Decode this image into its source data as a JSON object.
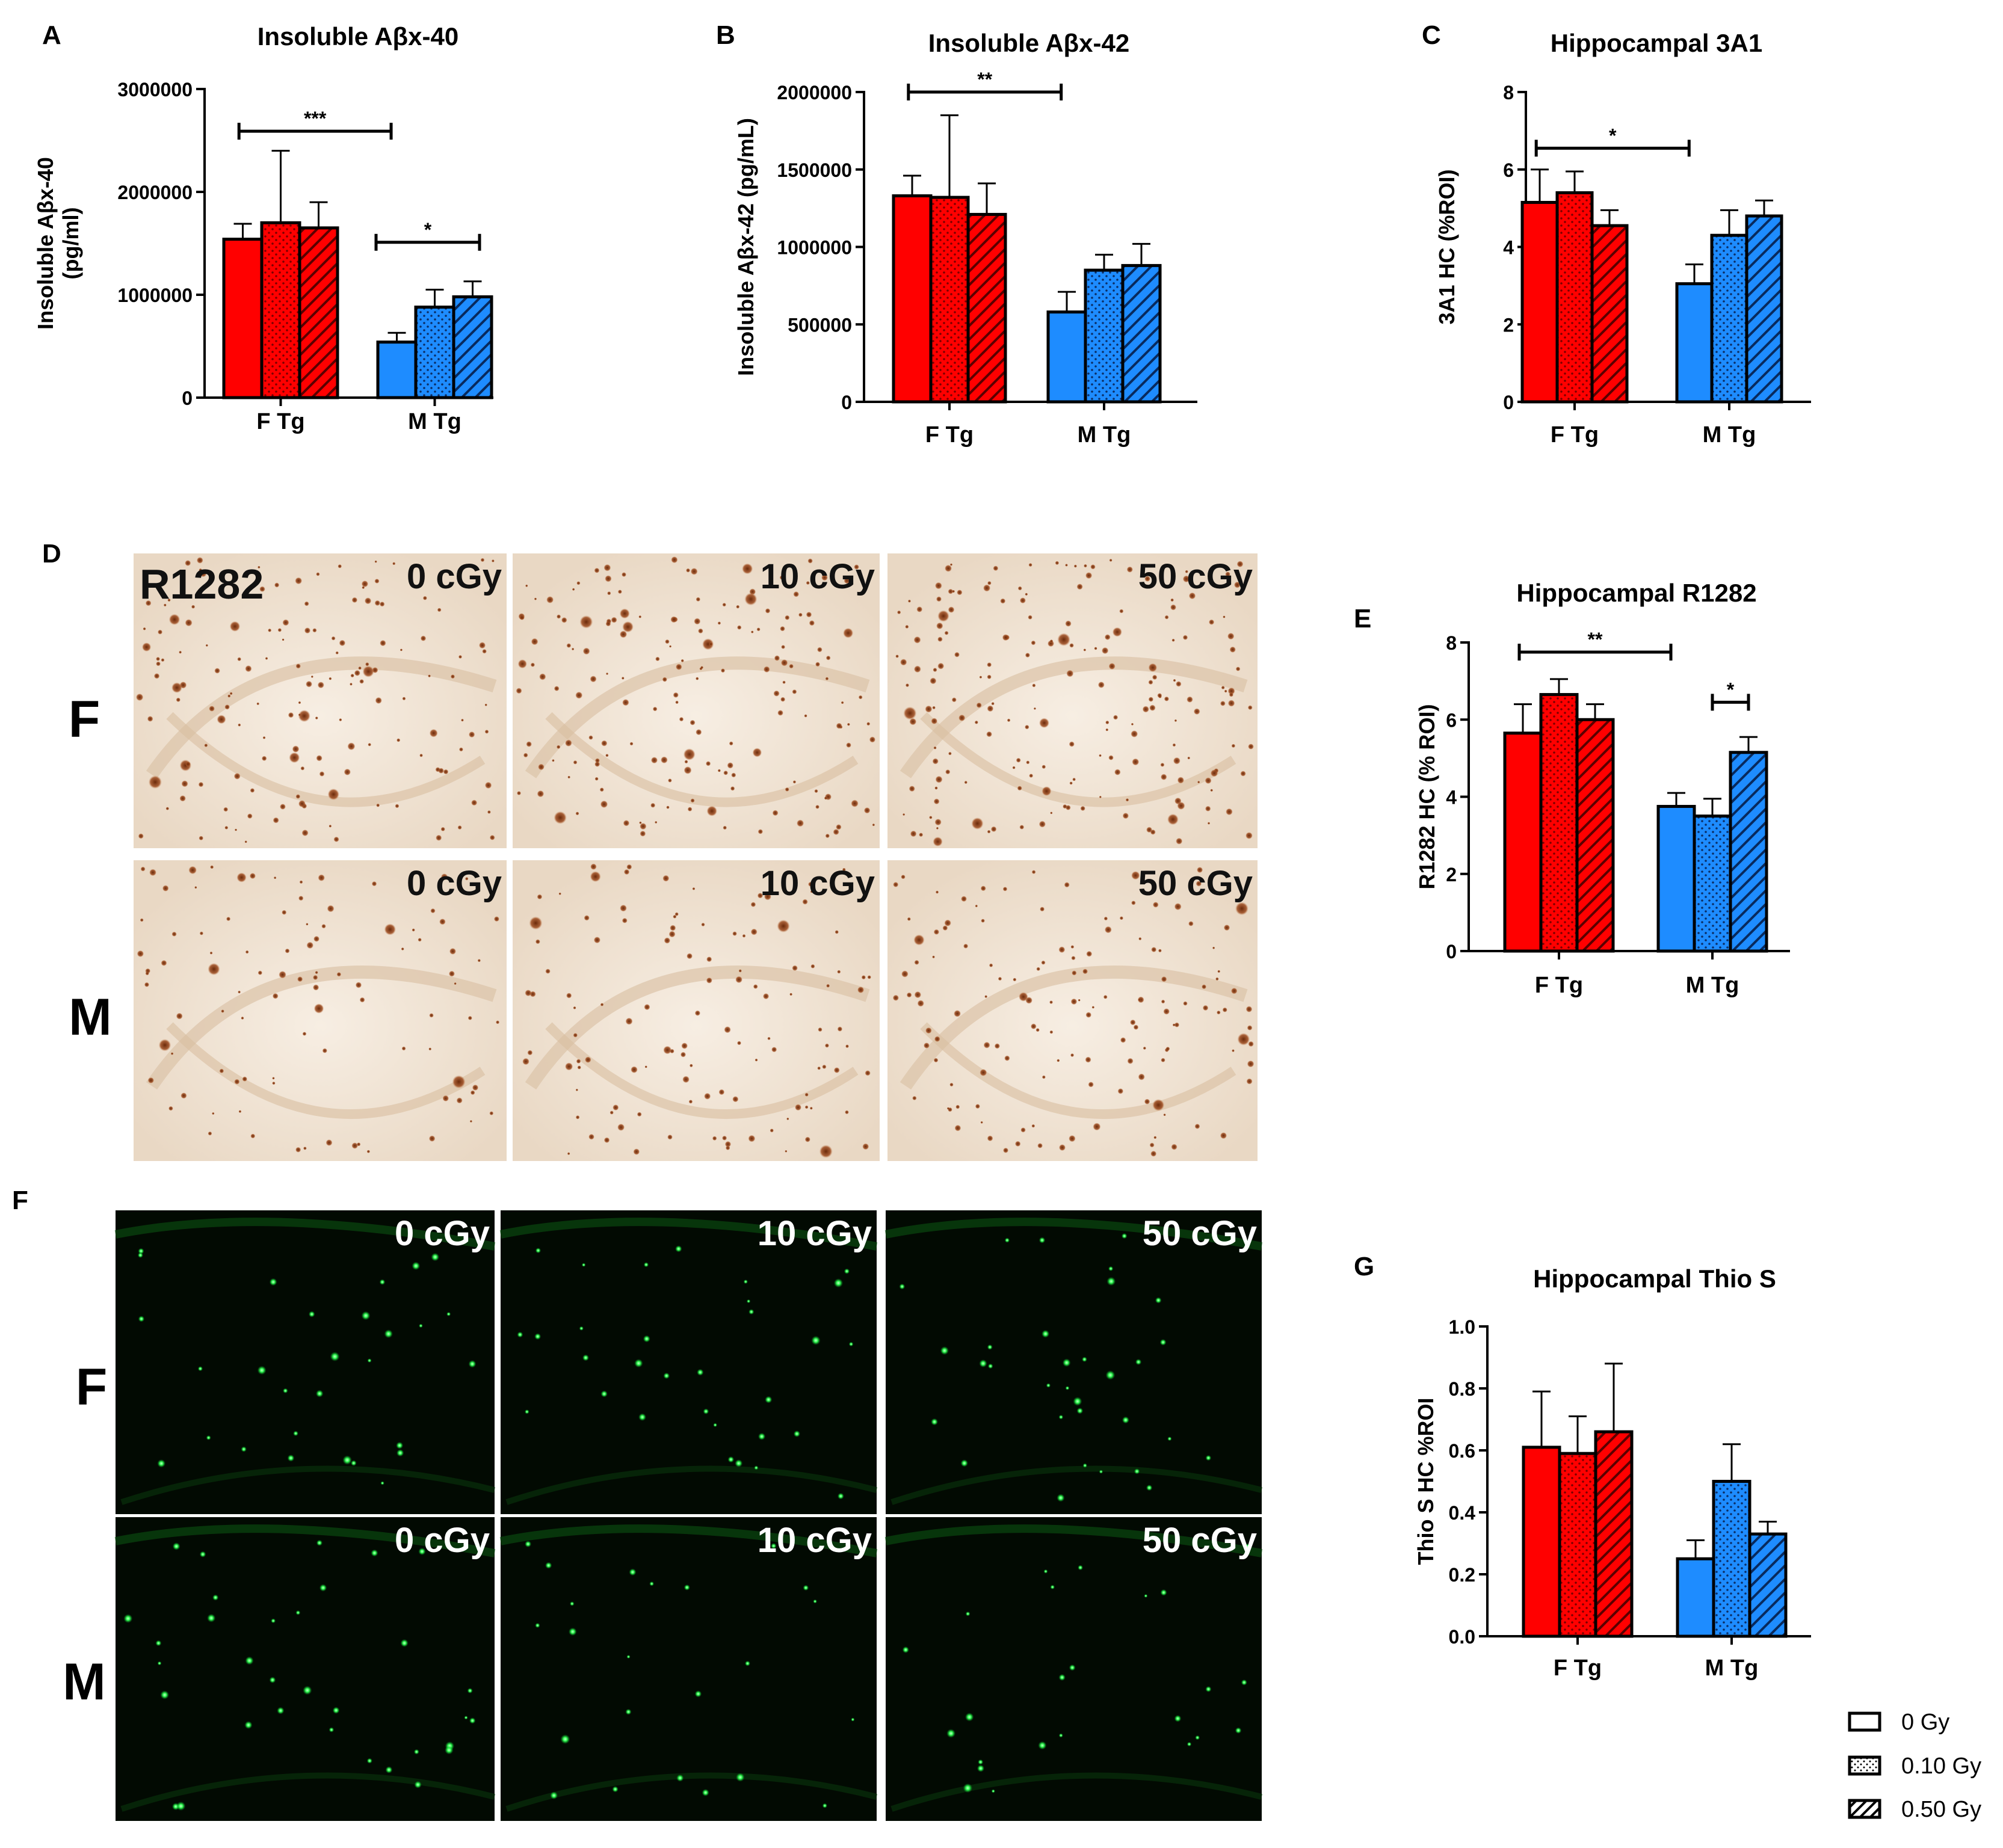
{
  "panels": {
    "A": {
      "letter": "A"
    },
    "B": {
      "letter": "B"
    },
    "C": {
      "letter": "C"
    },
    "D": {
      "letter": "D"
    },
    "E": {
      "letter": "E"
    },
    "F": {
      "letter": "F"
    },
    "G": {
      "letter": "G"
    }
  },
  "colors": {
    "female": "#ff0000",
    "male": "#1e8cff",
    "axis": "#000000",
    "mag_bg": "#020a02",
    "ihc_bg": "#efe2d2"
  },
  "micrographs": {
    "d": {
      "stain_label": "R1282",
      "row_labels": [
        "F",
        "M"
      ],
      "dose_labels": [
        "0 cGy",
        "10 cGy",
        "50 cGy"
      ]
    },
    "f": {
      "row_labels": [
        "F",
        "M"
      ],
      "dose_labels": [
        "0 cGy",
        "10 cGy",
        "50 cGy"
      ]
    }
  },
  "legend": {
    "items": [
      {
        "label": "0 Gy",
        "pattern": "solid"
      },
      {
        "label": "0.10 Gy",
        "pattern": "dots"
      },
      {
        "label": "0.50 Gy",
        "pattern": "hatch"
      }
    ]
  },
  "chart_data": [
    {
      "panel": "A",
      "type": "bar",
      "title": "Insoluble Aβx-40",
      "ylabel": "Insoluble Aβx-40\n(pg/ml)",
      "categories": [
        "F Tg",
        "M Tg"
      ],
      "ylim": [
        0,
        3000000
      ],
      "yticks": [
        0,
        1000000,
        2000000,
        3000000
      ],
      "yticklabels": [
        "0",
        "1000000",
        "2000000",
        "3000000"
      ],
      "series": [
        {
          "pattern": "solid",
          "values": [
            1540000,
            540000
          ],
          "errors": [
            150000,
            90000
          ]
        },
        {
          "pattern": "dots",
          "values": [
            1700000,
            880000
          ],
          "errors": [
            700000,
            170000
          ]
        },
        {
          "pattern": "hatch",
          "values": [
            1650000,
            980000
          ],
          "errors": [
            250000,
            150000
          ]
        }
      ],
      "significance": [
        {
          "label": "***",
          "category": 0,
          "from": 0,
          "to": 3,
          "at": 2590000
        },
        {
          "label": "*",
          "category": 1,
          "from": 0,
          "to": 2,
          "at": 1510000
        }
      ]
    },
    {
      "panel": "B",
      "type": "bar",
      "title": "Insoluble Aβx-42",
      "ylabel": "Insoluble Aβx-42 (pg/mL)",
      "categories": [
        "F Tg",
        "M Tg"
      ],
      "ylim": [
        0,
        2000000
      ],
      "yticks": [
        0,
        500000,
        1000000,
        1500000,
        2000000
      ],
      "yticklabels": [
        "0",
        "500000",
        "1000000",
        "1500000",
        "2000000"
      ],
      "series": [
        {
          "pattern": "solid",
          "values": [
            1330000,
            580000
          ],
          "errors": [
            130000,
            130000
          ]
        },
        {
          "pattern": "dots",
          "values": [
            1320000,
            850000
          ],
          "errors": [
            530000,
            100000
          ]
        },
        {
          "pattern": "hatch",
          "values": [
            1210000,
            880000
          ],
          "errors": [
            200000,
            140000
          ]
        }
      ],
      "significance": [
        {
          "label": "**",
          "category": 0,
          "from": 0,
          "to": 3,
          "at": 2000000
        }
      ]
    },
    {
      "panel": "C",
      "type": "bar",
      "title": "Hippocampal 3A1",
      "ylabel": "3A1 HC (%ROI)",
      "categories": [
        "F Tg",
        "M Tg"
      ],
      "ylim": [
        0,
        8
      ],
      "yticks": [
        0,
        2,
        4,
        6,
        8
      ],
      "yticklabels": [
        "0",
        "2",
        "4",
        "6",
        "8"
      ],
      "series": [
        {
          "pattern": "solid",
          "values": [
            5.15,
            3.05
          ],
          "errors": [
            0.85,
            0.5
          ]
        },
        {
          "pattern": "dots",
          "values": [
            5.4,
            4.3
          ],
          "errors": [
            0.55,
            0.65
          ]
        },
        {
          "pattern": "hatch",
          "values": [
            4.55,
            4.8
          ],
          "errors": [
            0.4,
            0.4
          ]
        }
      ],
      "significance": [
        {
          "label": "*",
          "category": 0,
          "from": 0,
          "to": 3,
          "at": 6.55
        }
      ]
    },
    {
      "panel": "E",
      "type": "bar",
      "title": "Hippocampal R1282",
      "ylabel": "R1282 HC (% ROI)",
      "categories": [
        "F Tg",
        "M Tg"
      ],
      "ylim": [
        0,
        8
      ],
      "yticks": [
        0,
        2,
        4,
        6,
        8
      ],
      "yticklabels": [
        "0",
        "2",
        "4",
        "6",
        "8"
      ],
      "series": [
        {
          "pattern": "solid",
          "values": [
            5.65,
            3.75
          ],
          "errors": [
            0.75,
            0.35
          ]
        },
        {
          "pattern": "dots",
          "values": [
            6.65,
            3.5
          ],
          "errors": [
            0.4,
            0.45
          ]
        },
        {
          "pattern": "hatch",
          "values": [
            6.0,
            5.15
          ],
          "errors": [
            0.4,
            0.4
          ]
        }
      ],
      "significance": [
        {
          "label": "**",
          "category": 0,
          "from": 0,
          "to": 3,
          "at": 7.75
        },
        {
          "label": "*",
          "category": 1,
          "from": 1,
          "to": 2,
          "at": 6.45
        }
      ]
    },
    {
      "panel": "G",
      "type": "bar",
      "title": "Hippocampal Thio S",
      "ylabel": "Thio S HC %ROI",
      "categories": [
        "F Tg",
        "M Tg"
      ],
      "ylim": [
        0,
        1.0
      ],
      "yticks": [
        0,
        0.2,
        0.4,
        0.6,
        0.8,
        1.0
      ],
      "yticklabels": [
        "0.0",
        "0.2",
        "0.4",
        "0.6",
        "0.8",
        "1.0"
      ],
      "series": [
        {
          "pattern": "solid",
          "values": [
            0.61,
            0.25
          ],
          "errors": [
            0.18,
            0.06
          ]
        },
        {
          "pattern": "dots",
          "values": [
            0.59,
            0.5
          ],
          "errors": [
            0.12,
            0.12
          ]
        },
        {
          "pattern": "hatch",
          "values": [
            0.66,
            0.33
          ],
          "errors": [
            0.22,
            0.04
          ]
        }
      ],
      "significance": []
    }
  ]
}
